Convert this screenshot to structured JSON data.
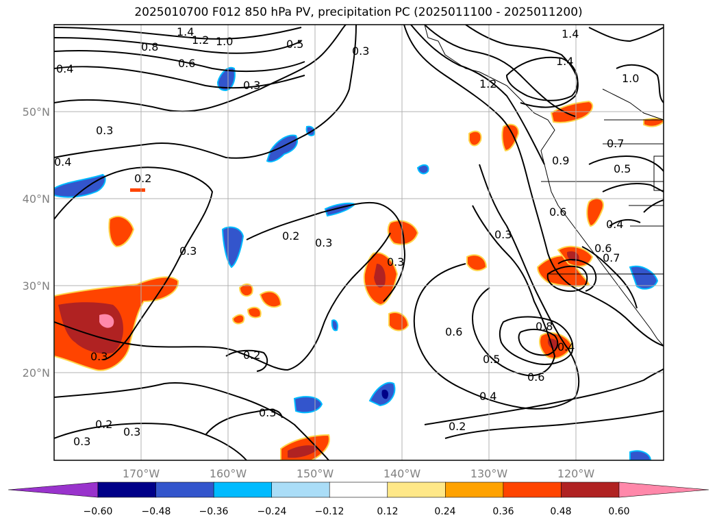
{
  "title": "2025010700 F012 850 hPa PV, precipitation PC (2025011100 - 2025011200)",
  "map": {
    "lat_labels": [
      "50°N",
      "40°N",
      "30°N",
      "20°N"
    ],
    "lon_labels": [
      "170°W",
      "160°W",
      "150°W",
      "140°W",
      "130°W",
      "120°W"
    ],
    "gridlines": true
  },
  "contour_labels": [
    "1.4",
    "1.2",
    "1.0",
    "0.8",
    "0.6",
    "0.5",
    "0.4",
    "0.3",
    "0.3",
    "0.3",
    "0.3",
    "0.3",
    "0.3",
    "0.3",
    "0.3",
    "0.3",
    "0.3",
    "0.2",
    "0.2",
    "0.2",
    "0.2",
    "0.2",
    "1.4",
    "1.4",
    "1.0",
    "0.9",
    "0.7",
    "0.5",
    "0.6",
    "0.4",
    "0.3",
    "0.6",
    "0.5",
    "0.6",
    "0.8",
    "0.4",
    "0.4",
    "1.2",
    "0.6",
    "0.4",
    "0.7"
  ],
  "colorbar": {
    "ticks": [
      "−0.60",
      "−0.48",
      "−0.36",
      "−0.24",
      "−0.12",
      "0.12",
      "0.24",
      "0.36",
      "0.48",
      "0.60"
    ],
    "colors": [
      "#9933cc",
      "#000088",
      "#3355cc",
      "#00bbff",
      "#aaddf7",
      "#ffffff",
      "#ffe888",
      "#ffa200",
      "#ff4400",
      "#b02222",
      "#ff88aa"
    ],
    "extend": "both"
  }
}
